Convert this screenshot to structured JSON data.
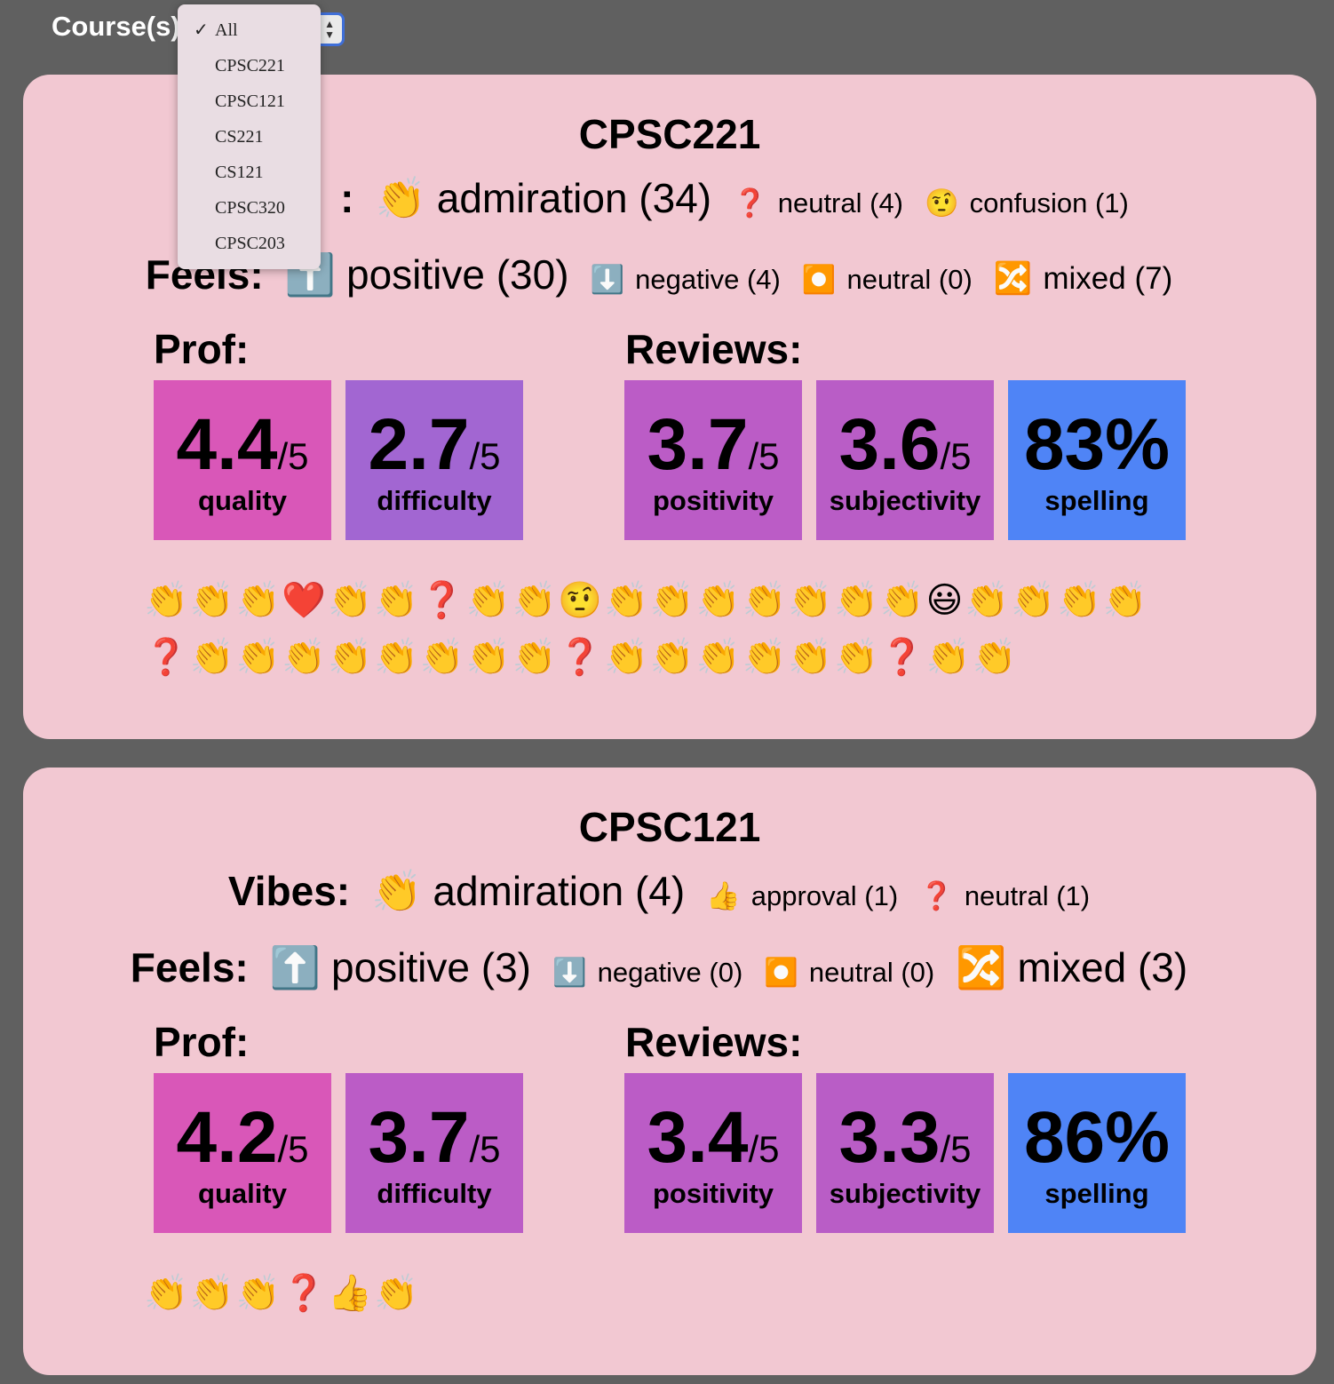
{
  "filter": {
    "label": "Course(s)",
    "selected": "All",
    "options": [
      "All",
      "CPSC221",
      "CPSC121",
      "CS221",
      "CS121",
      "CPSC320",
      "CPSC203"
    ],
    "check": "✓"
  },
  "labels": {
    "vibes": "Vibes:",
    "vibes_partial": ":",
    "feels": "Feels:",
    "prof": "Prof:",
    "reviews": "Reviews:",
    "den": "/5"
  },
  "courses": [
    {
      "name": "CPSC221",
      "vibes": [
        {
          "emoji": "👏",
          "text": "admiration (34)"
        },
        {
          "emoji": "❓",
          "text": "neutral (4)"
        },
        {
          "emoji": "🤨",
          "text": "confusion (1)"
        }
      ],
      "feels": [
        {
          "emoji": "⬆️",
          "text": "positive (30)"
        },
        {
          "emoji": "⬇️",
          "text": "negative (4)"
        },
        {
          "emoji": "⏺️",
          "text": "neutral (0)"
        },
        {
          "emoji": "🔀",
          "text": "mixed (7)"
        }
      ],
      "prof": {
        "quality": "4.4",
        "difficulty": "2.7"
      },
      "reviews": {
        "positivity": "3.7",
        "subjectivity": "3.6",
        "spelling": "83%"
      },
      "emoji_strip": "👏👏👏❤️👏👏❓👏👏🤨👏👏👏👏👏👏👏😃👏👏👏👏❓👏👏👏👏👏👏👏👏❓👏👏👏👏👏👏❓👏👏"
    },
    {
      "name": "CPSC121",
      "vibes": [
        {
          "emoji": "👏",
          "text": "admiration (4)"
        },
        {
          "emoji": "👍",
          "text": "approval (1)"
        },
        {
          "emoji": "❓",
          "text": "neutral (1)"
        }
      ],
      "feels": [
        {
          "emoji": "⬆️",
          "text": "positive (3)"
        },
        {
          "emoji": "⬇️",
          "text": "negative (0)"
        },
        {
          "emoji": "⏺️",
          "text": "neutral (0)"
        },
        {
          "emoji": "🔀",
          "text": "mixed (3)"
        }
      ],
      "prof": {
        "quality": "4.2",
        "difficulty": "3.7"
      },
      "reviews": {
        "positivity": "3.4",
        "subjectivity": "3.3",
        "spelling": "86%"
      },
      "emoji_strip": "👏👏👏❓👍👏"
    }
  ],
  "captions": {
    "quality": "quality",
    "difficulty": "difficulty",
    "positivity": "positivity",
    "subjectivity": "subjectivity",
    "spelling": "spelling"
  }
}
